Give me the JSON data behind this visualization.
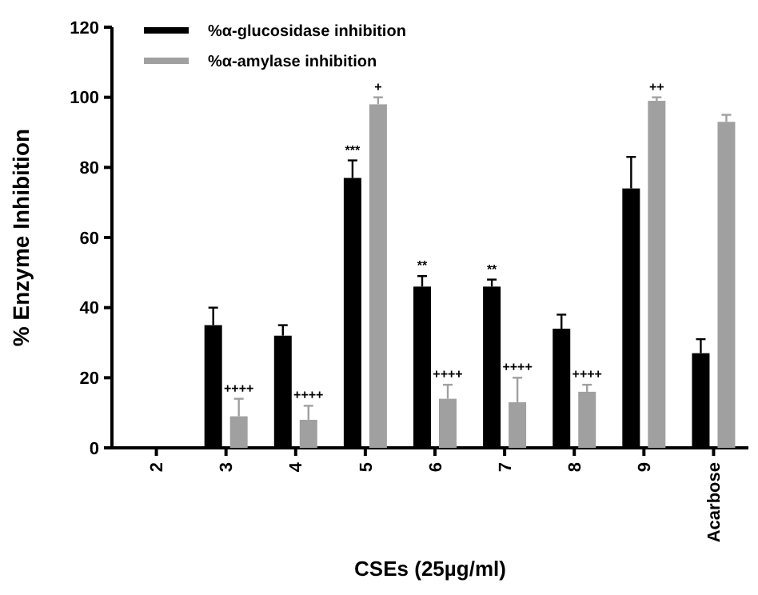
{
  "chart_data": {
    "type": "bar",
    "xlabel": "CSEs (25µg/ml)",
    "ylabel": "% Enzyme Inhibition",
    "categories": [
      "2",
      "3",
      "4",
      "5",
      "6",
      "7",
      "8",
      "9",
      "Acarbose"
    ],
    "series": [
      {
        "name": "%α-glucosidase inhibition",
        "color": "#000000",
        "values": [
          null,
          35,
          32,
          77,
          46,
          46,
          34,
          74,
          27
        ],
        "errors": [
          null,
          [
            35,
            40
          ],
          [
            32,
            35
          ],
          [
            77,
            82
          ],
          [
            46,
            49
          ],
          [
            46,
            48
          ],
          [
            34,
            38
          ],
          [
            74,
            83
          ],
          [
            27,
            31
          ]
        ]
      },
      {
        "name": "%α-amylase inhibition",
        "color": "#a0a0a0",
        "values": [
          null,
          9,
          8,
          98,
          14,
          13,
          16,
          99,
          93
        ],
        "errors": [
          null,
          [
            9,
            14
          ],
          [
            8,
            12
          ],
          [
            98,
            100
          ],
          [
            14,
            18
          ],
          [
            13,
            20
          ],
          [
            16,
            18
          ],
          [
            99,
            100
          ],
          [
            93,
            95
          ]
        ]
      }
    ],
    "ylim": [
      0,
      120
    ],
    "yticks": [
      0,
      20,
      40,
      60,
      80,
      100,
      120
    ],
    "grid": false,
    "legend": "top left",
    "annotations": [
      {
        "text": "++++",
        "x": "3",
        "y": 9
      },
      {
        "text": "++++",
        "x": "4",
        "y": 8
      },
      {
        "text": "***",
        "x": "5",
        "y": 77
      },
      {
        "text": "+",
        "x": "5",
        "y": 98
      },
      {
        "text": "**",
        "x": "6",
        "y": 46
      },
      {
        "text": "++++",
        "x": "6",
        "y": 14
      },
      {
        "text": "**",
        "x": "7",
        "y": 46
      },
      {
        "text": "++++",
        "x": "7",
        "y": 13
      },
      {
        "text": "++++",
        "x": "8",
        "y": 16
      },
      {
        "text": "++",
        "x": "9",
        "y": 99
      }
    ]
  }
}
